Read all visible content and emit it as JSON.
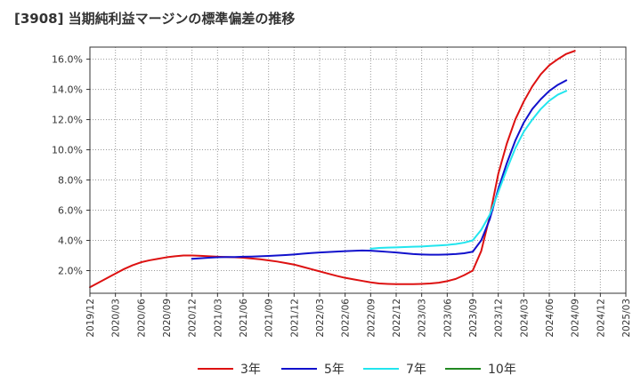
{
  "chart_data": {
    "type": "line",
    "title": "[3908]  当期純利益マージンの標準偏差の推移",
    "xlabel": "",
    "ylabel": "",
    "ylim": [
      0.5,
      16.8
    ],
    "yticks": [
      2.0,
      4.0,
      6.0,
      8.0,
      10.0,
      12.0,
      14.0,
      16.0
    ],
    "ytick_labels": [
      "2.0%",
      "4.0%",
      "6.0%",
      "8.0%",
      "10.0%",
      "12.0%",
      "14.0%",
      "16.0%"
    ],
    "xticks": [
      "2019/12",
      "2020/03",
      "2020/06",
      "2020/09",
      "2020/12",
      "2021/03",
      "2021/06",
      "2021/09",
      "2021/12",
      "2022/03",
      "2022/06",
      "2022/09",
      "2022/12",
      "2023/03",
      "2023/06",
      "2023/09",
      "2023/12",
      "2024/03",
      "2024/06",
      "2024/09",
      "2024/12",
      "2025/03"
    ],
    "grid": true,
    "legend_position": "bottom",
    "series": [
      {
        "name": "3年",
        "color": "#dd1111",
        "points": [
          [
            0,
            0.9
          ],
          [
            1,
            1.2
          ],
          [
            2,
            1.5
          ],
          [
            3,
            1.8
          ],
          [
            4,
            2.1
          ],
          [
            5,
            2.35
          ],
          [
            6,
            2.55
          ],
          [
            7,
            2.68
          ],
          [
            8,
            2.78
          ],
          [
            9,
            2.88
          ],
          [
            10,
            2.95
          ],
          [
            11,
            3.0
          ],
          [
            12,
            3.0
          ],
          [
            13,
            2.98
          ],
          [
            14,
            2.95
          ],
          [
            15,
            2.92
          ],
          [
            16,
            2.9
          ],
          [
            17,
            2.88
          ],
          [
            18,
            2.85
          ],
          [
            19,
            2.8
          ],
          [
            20,
            2.75
          ],
          [
            21,
            2.68
          ],
          [
            22,
            2.6
          ],
          [
            23,
            2.5
          ],
          [
            24,
            2.4
          ],
          [
            25,
            2.25
          ],
          [
            26,
            2.1
          ],
          [
            27,
            1.95
          ],
          [
            28,
            1.8
          ],
          [
            29,
            1.65
          ],
          [
            30,
            1.52
          ],
          [
            31,
            1.42
          ],
          [
            32,
            1.32
          ],
          [
            33,
            1.22
          ],
          [
            34,
            1.15
          ],
          [
            35,
            1.12
          ],
          [
            36,
            1.1
          ],
          [
            37,
            1.1
          ],
          [
            38,
            1.1
          ],
          [
            39,
            1.12
          ],
          [
            40,
            1.15
          ],
          [
            41,
            1.2
          ],
          [
            42,
            1.3
          ],
          [
            43,
            1.45
          ],
          [
            44,
            1.7
          ],
          [
            45,
            2.0
          ],
          [
            46,
            3.3
          ],
          [
            47,
            5.6
          ],
          [
            48,
            8.4
          ],
          [
            49,
            10.4
          ],
          [
            50,
            12.0
          ],
          [
            51,
            13.2
          ],
          [
            52,
            14.2
          ],
          [
            53,
            15.0
          ],
          [
            54,
            15.6
          ],
          [
            55,
            16.0
          ],
          [
            56,
            16.35
          ],
          [
            57,
            16.55
          ]
        ]
      },
      {
        "name": "5年",
        "color": "#1111cc",
        "points": [
          [
            12,
            2.78
          ],
          [
            13,
            2.82
          ],
          [
            14,
            2.85
          ],
          [
            15,
            2.88
          ],
          [
            16,
            2.9
          ],
          [
            17,
            2.9
          ],
          [
            18,
            2.92
          ],
          [
            19,
            2.93
          ],
          [
            20,
            2.95
          ],
          [
            21,
            2.97
          ],
          [
            22,
            3.0
          ],
          [
            23,
            3.03
          ],
          [
            24,
            3.07
          ],
          [
            25,
            3.12
          ],
          [
            26,
            3.16
          ],
          [
            27,
            3.2
          ],
          [
            28,
            3.23
          ],
          [
            29,
            3.26
          ],
          [
            30,
            3.29
          ],
          [
            31,
            3.31
          ],
          [
            32,
            3.33
          ],
          [
            33,
            3.32
          ],
          [
            34,
            3.28
          ],
          [
            35,
            3.24
          ],
          [
            36,
            3.2
          ],
          [
            37,
            3.15
          ],
          [
            38,
            3.1
          ],
          [
            39,
            3.07
          ],
          [
            40,
            3.05
          ],
          [
            41,
            3.05
          ],
          [
            42,
            3.07
          ],
          [
            43,
            3.1
          ],
          [
            44,
            3.15
          ],
          [
            45,
            3.25
          ],
          [
            46,
            4.0
          ],
          [
            47,
            5.4
          ],
          [
            48,
            7.4
          ],
          [
            49,
            9.1
          ],
          [
            50,
            10.6
          ],
          [
            51,
            11.8
          ],
          [
            52,
            12.7
          ],
          [
            53,
            13.35
          ],
          [
            54,
            13.9
          ],
          [
            55,
            14.3
          ],
          [
            56,
            14.6
          ]
        ]
      },
      {
        "name": "7年",
        "color": "#22e5ee",
        "points": [
          [
            33,
            3.45
          ],
          [
            34,
            3.5
          ],
          [
            35,
            3.52
          ],
          [
            36,
            3.54
          ],
          [
            37,
            3.56
          ],
          [
            38,
            3.58
          ],
          [
            39,
            3.6
          ],
          [
            40,
            3.63
          ],
          [
            41,
            3.66
          ],
          [
            42,
            3.7
          ],
          [
            43,
            3.76
          ],
          [
            44,
            3.85
          ],
          [
            45,
            4.0
          ],
          [
            46,
            4.7
          ],
          [
            47,
            5.7
          ],
          [
            48,
            7.2
          ],
          [
            49,
            8.7
          ],
          [
            50,
            10.1
          ],
          [
            51,
            11.2
          ],
          [
            52,
            12.0
          ],
          [
            53,
            12.7
          ],
          [
            54,
            13.25
          ],
          [
            55,
            13.65
          ],
          [
            56,
            13.9
          ]
        ]
      },
      {
        "name": "10年",
        "color": "#228822",
        "points": []
      }
    ]
  }
}
